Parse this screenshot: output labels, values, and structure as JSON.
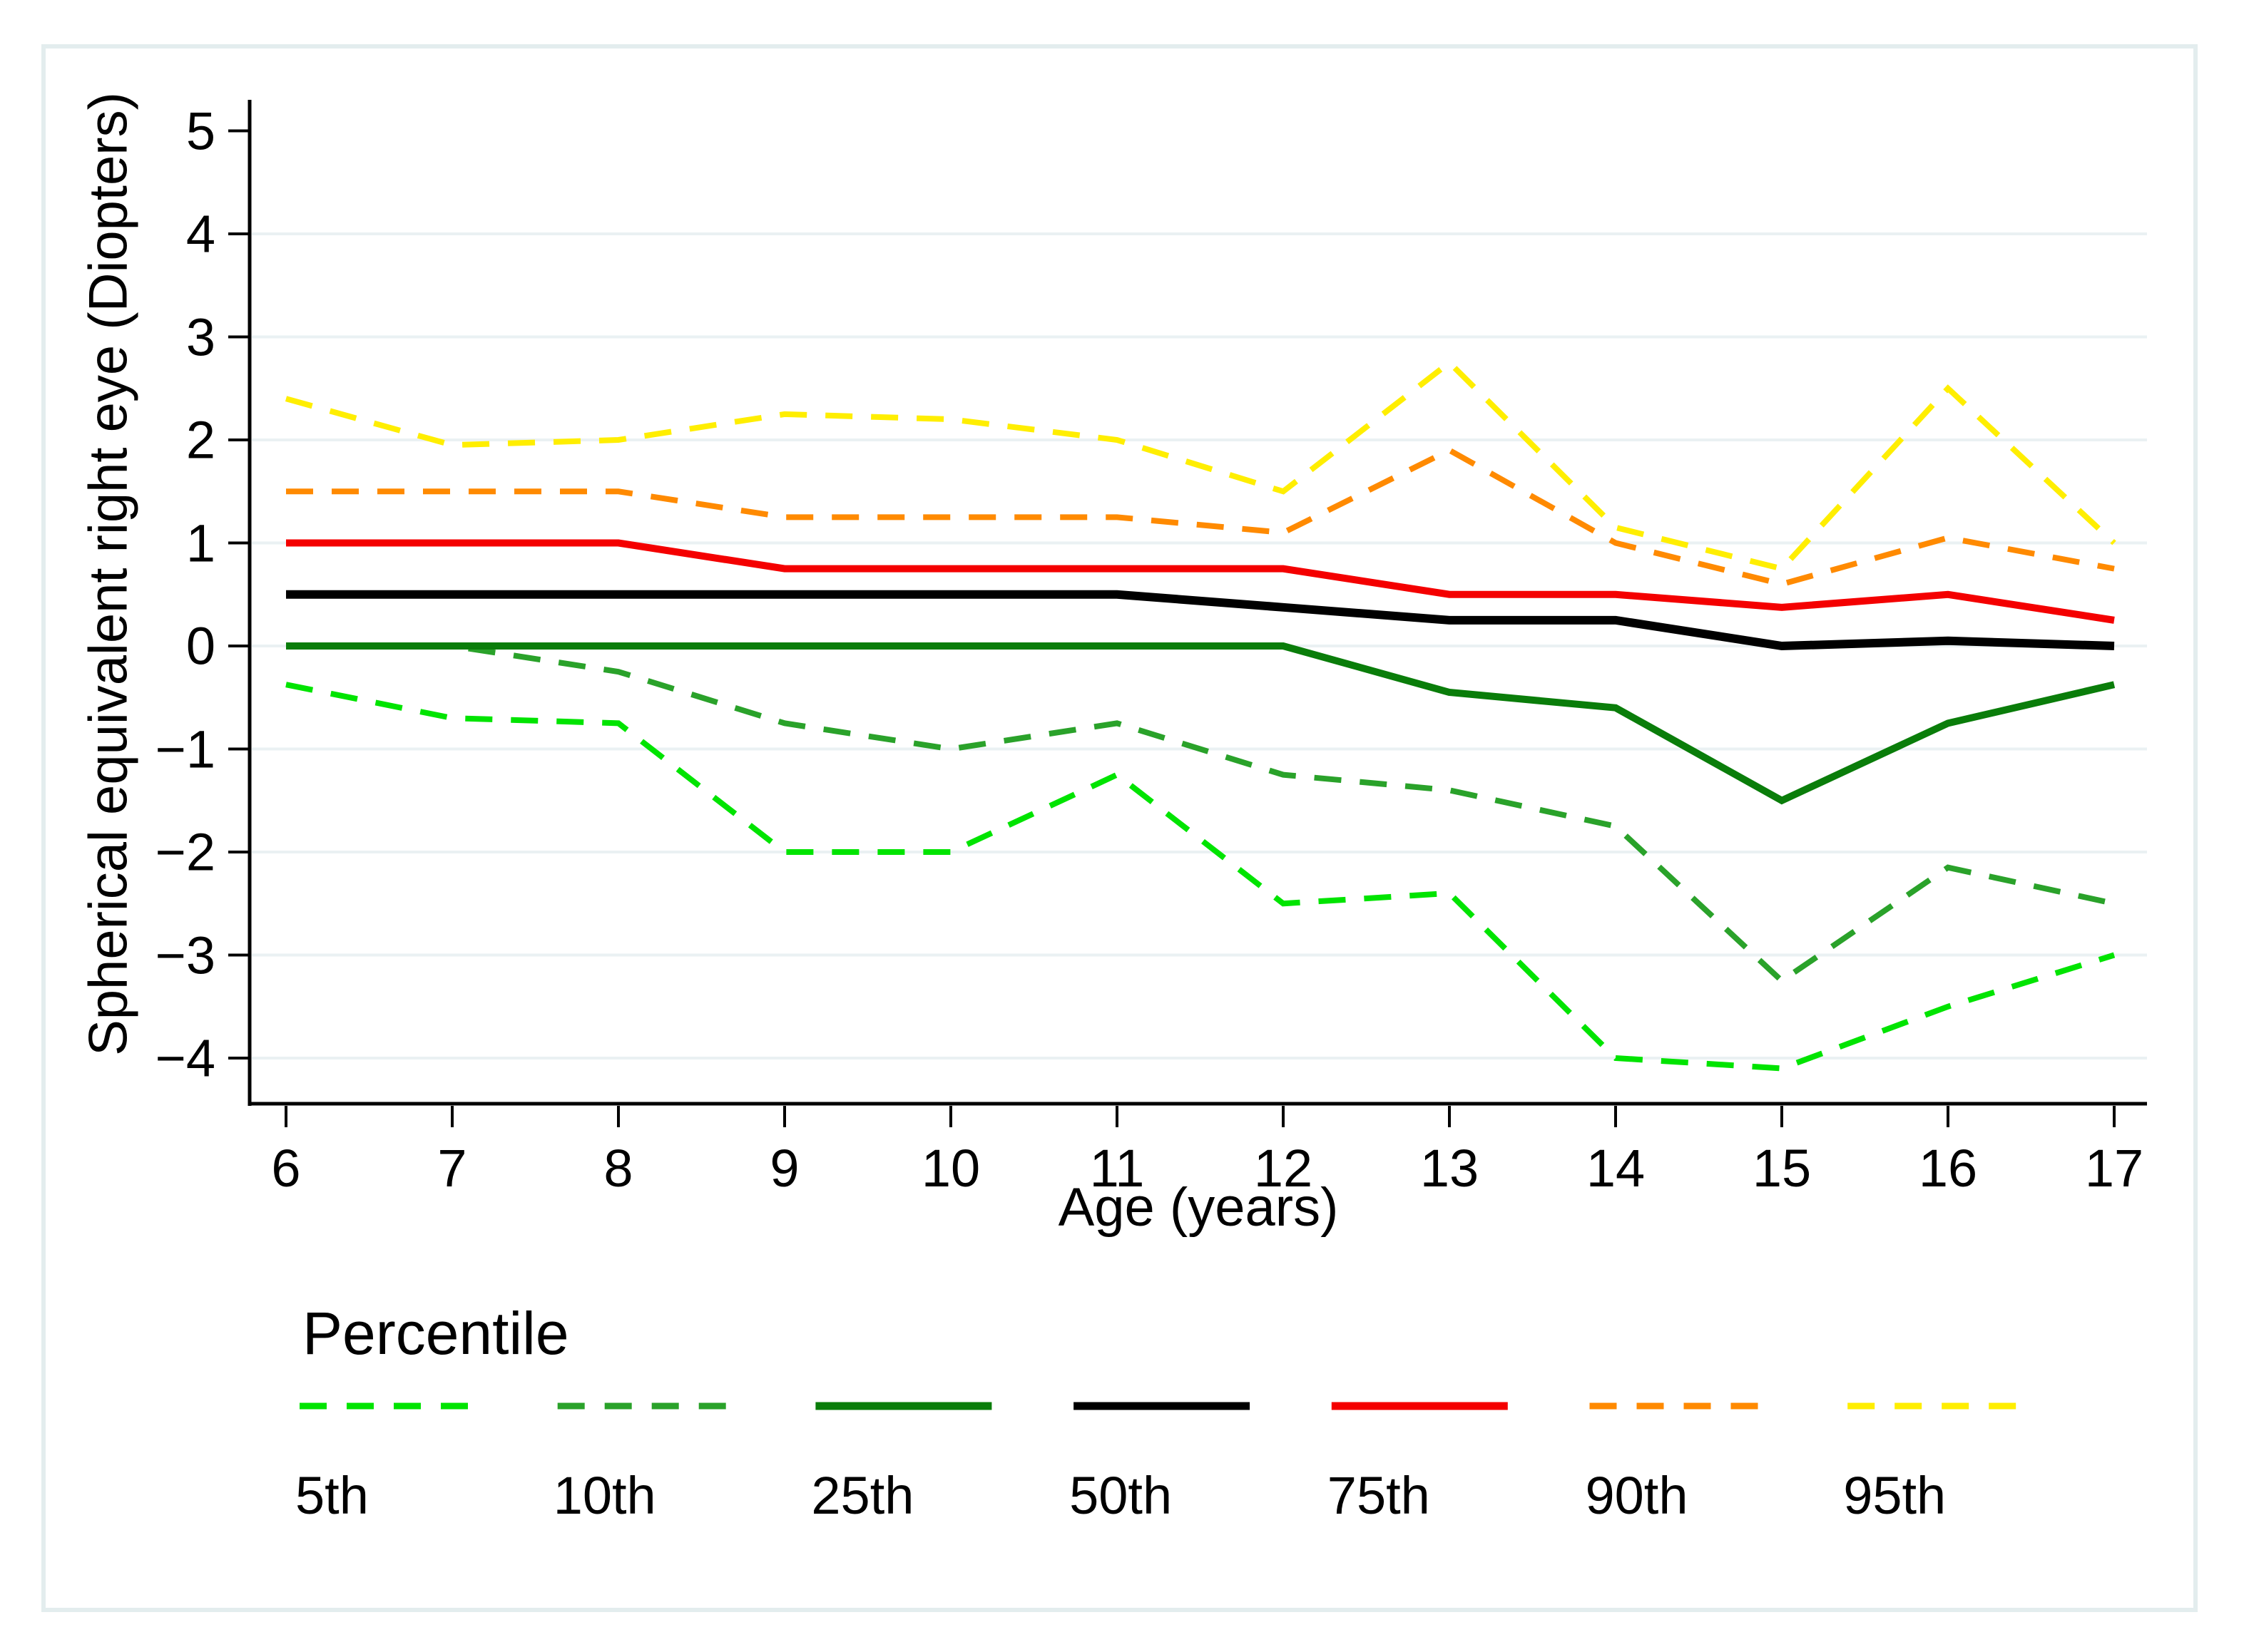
{
  "figure": {
    "background": "#ffffff",
    "frame_color": "#e3edee",
    "gridline_color": "#eaf1f3",
    "axis_color": "#000000"
  },
  "chart_data": {
    "type": "line",
    "title": "",
    "xlabel": "Age (years)",
    "ylabel": "Spherical equivalent right eye (Diopters)",
    "x": [
      6,
      7,
      8,
      9,
      10,
      11,
      12,
      13,
      14,
      15,
      16,
      17
    ],
    "xlim": [
      5.78,
      17.2
    ],
    "ylim": [
      -4.45,
      5.3
    ],
    "grid": "horizontal",
    "grid_values": [
      4,
      3,
      2,
      1,
      0,
      -1,
      -2,
      -3,
      -4
    ],
    "xticks": [
      {
        "v": 6,
        "label": "6"
      },
      {
        "v": 7,
        "label": "7"
      },
      {
        "v": 8,
        "label": "8"
      },
      {
        "v": 9,
        "label": "9"
      },
      {
        "v": 10,
        "label": "10"
      },
      {
        "v": 11,
        "label": "11"
      },
      {
        "v": 12,
        "label": "12"
      },
      {
        "v": 13,
        "label": "13"
      },
      {
        "v": 14,
        "label": "14"
      },
      {
        "v": 15,
        "label": "15"
      },
      {
        "v": 16,
        "label": "16"
      },
      {
        "v": 17,
        "label": "17"
      }
    ],
    "yticks": [
      {
        "v": 5,
        "label": "5"
      },
      {
        "v": 4,
        "label": "4"
      },
      {
        "v": 3,
        "label": "3"
      },
      {
        "v": 2,
        "label": "2"
      },
      {
        "v": 1,
        "label": "1"
      },
      {
        "v": 0,
        "label": "0"
      },
      {
        "v": -1,
        "label": "−1"
      },
      {
        "v": -2,
        "label": "−2"
      },
      {
        "v": -3,
        "label": "−3"
      },
      {
        "v": -4,
        "label": "−4"
      }
    ],
    "legend": {
      "title": "Percentile",
      "position": "bottom"
    },
    "series": [
      {
        "name": "5th",
        "color": "#00e400",
        "dashed": true,
        "stroke_width": 8,
        "values": [
          -0.375,
          -0.7,
          -0.75,
          -2.0,
          -2.0,
          -1.25,
          -2.5,
          -2.4,
          -4.0,
          -4.1,
          -3.5,
          -3.0
        ]
      },
      {
        "name": "10th",
        "color": "#2aa22a",
        "dashed": true,
        "stroke_width": 8,
        "values": [
          0,
          0,
          -0.25,
          -0.75,
          -1.0,
          -0.75,
          -1.25,
          -1.4,
          -1.75,
          -3.25,
          -2.15,
          -2.5
        ]
      },
      {
        "name": "25th",
        "color": "#0a7d0a",
        "dashed": false,
        "stroke_width": 10,
        "values": [
          0,
          0,
          0,
          0,
          0,
          0,
          0,
          -0.45,
          -0.6,
          -1.5,
          -0.75,
          -0.375
        ]
      },
      {
        "name": "50th",
        "color": "#000000",
        "dashed": false,
        "stroke_width": 12,
        "values": [
          0.5,
          0.5,
          0.5,
          0.5,
          0.5,
          0.5,
          0.375,
          0.25,
          0.25,
          0,
          0.05,
          0
        ]
      },
      {
        "name": "75th",
        "color": "#f40000",
        "dashed": false,
        "stroke_width": 10,
        "values": [
          1.0,
          1.0,
          1.0,
          0.75,
          0.75,
          0.75,
          0.75,
          0.5,
          0.5,
          0.375,
          0.5,
          0.25
        ]
      },
      {
        "name": "90th",
        "color": "#ff8a00",
        "dashed": true,
        "stroke_width": 8,
        "values": [
          1.5,
          1.5,
          1.5,
          1.25,
          1.25,
          1.25,
          1.1,
          1.9,
          1.0,
          0.6,
          1.05,
          0.75
        ]
      },
      {
        "name": "95th",
        "color": "#ffee00",
        "dashed": true,
        "stroke_width": 8,
        "values": [
          2.4,
          1.95,
          2.0,
          2.25,
          2.2,
          2.0,
          1.5,
          2.75,
          1.15,
          0.75,
          2.5,
          1.0
        ]
      }
    ]
  }
}
